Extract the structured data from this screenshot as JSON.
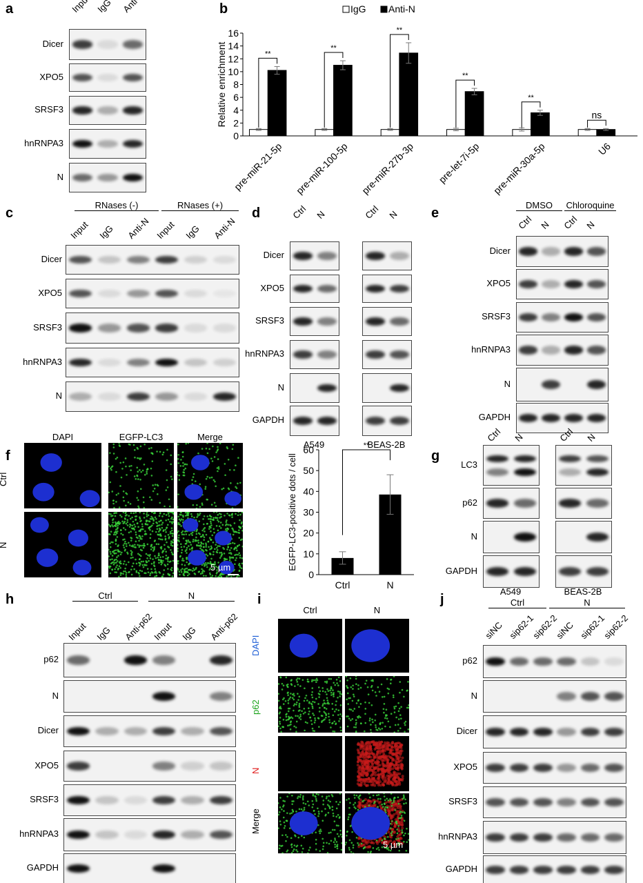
{
  "panel_labels": {
    "a": "a",
    "b": "b",
    "c": "c",
    "d": "d",
    "e": "e",
    "f": "f",
    "g": "g",
    "h": "h",
    "i": "i",
    "j": "j"
  },
  "blots": {
    "a": {
      "lanes": [
        "Input",
        "IgG",
        "Anti-N"
      ],
      "rows": [
        {
          "label": "Dicer",
          "bands": [
            0.8,
            0.1,
            0.6
          ]
        },
        {
          "label": "XPO5",
          "bands": [
            0.7,
            0.1,
            0.7
          ]
        },
        {
          "label": "SRSF3",
          "bands": [
            0.9,
            0.3,
            0.9
          ]
        },
        {
          "label": "hnRNPA3",
          "bands": [
            1,
            0.3,
            0.9
          ]
        },
        {
          "label": "N",
          "bands": [
            0.6,
            0.4,
            1
          ]
        }
      ]
    },
    "c": {
      "groups": [
        "RNases (-)",
        "RNases (+)"
      ],
      "lanes": [
        "Input",
        "IgG",
        "Anti-N",
        "Input",
        "IgG",
        "Anti-N"
      ],
      "rows": [
        {
          "label": "Dicer",
          "bands": [
            0.7,
            0.2,
            0.5,
            0.8,
            0.15,
            0.1
          ]
        },
        {
          "label": "XPO5",
          "bands": [
            0.7,
            0.1,
            0.4,
            0.7,
            0.1,
            0.05
          ]
        },
        {
          "label": "SRSF3",
          "bands": [
            1,
            0.4,
            0.7,
            0.8,
            0.1,
            0.1
          ]
        },
        {
          "label": "hnRNPA3",
          "bands": [
            0.9,
            0.1,
            0.5,
            1,
            0.2,
            0.15
          ]
        },
        {
          "label": "N",
          "bands": [
            0.3,
            0.1,
            0.8,
            0.4,
            0.1,
            0.9
          ]
        }
      ]
    },
    "d": {
      "lanes": [
        "Ctrl",
        "N"
      ],
      "captions": [
        "A549",
        "BEAS-2B"
      ],
      "row_labels": [
        "Dicer",
        "XPO5",
        "SRSF3",
        "hnRNPA3",
        "N",
        "GAPDH"
      ],
      "left": [
        [
          0.9,
          0.5
        ],
        [
          0.9,
          0.6
        ],
        [
          0.9,
          0.5
        ],
        [
          0.8,
          0.5
        ],
        [
          0,
          0.9
        ],
        [
          0.9,
          0.9
        ]
      ],
      "right": [
        [
          0.9,
          0.3
        ],
        [
          0.9,
          0.8
        ],
        [
          0.9,
          0.6
        ],
        [
          0.8,
          0.7
        ],
        [
          0,
          0.9
        ],
        [
          0.8,
          0.8
        ]
      ]
    },
    "e": {
      "groups": [
        "DMSO",
        "Chloroquine"
      ],
      "lanes": [
        "Ctrl",
        "N",
        "Ctrl",
        "N"
      ],
      "rows": [
        {
          "label": "Dicer",
          "bands": [
            0.9,
            0.3,
            0.9,
            0.7
          ]
        },
        {
          "label": "XPO5",
          "bands": [
            0.8,
            0.3,
            0.9,
            0.7
          ]
        },
        {
          "label": "SRSF3",
          "bands": [
            0.8,
            0.5,
            1,
            0.7
          ]
        },
        {
          "label": "hnRNPA3",
          "bands": [
            0.8,
            0.3,
            0.9,
            0.7
          ]
        },
        {
          "label": "N",
          "bands": [
            0,
            0.8,
            0,
            0.9
          ]
        },
        {
          "label": "GAPDH",
          "bands": [
            0.9,
            0.9,
            0.9,
            0.9
          ]
        }
      ]
    },
    "g": {
      "lanes": [
        "Ctrl",
        "N"
      ],
      "captions": [
        "A549",
        "BEAS-2B"
      ],
      "row_labels": [
        "LC3",
        "p62",
        "N",
        "GAPDH"
      ],
      "left": [
        [
          [
            0.9,
            0.5
          ],
          [
            0.9,
            1
          ]
        ],
        [
          0.9,
          0.6
        ],
        [
          0,
          1
        ],
        [
          0.9,
          0.9
        ]
      ],
      "right": [
        [
          [
            0.8,
            0.3
          ],
          [
            0.7,
            0.9
          ]
        ],
        [
          0.9,
          0.6
        ],
        [
          0,
          0.9
        ],
        [
          0.8,
          0.8
        ]
      ]
    },
    "h": {
      "groups": [
        "Ctrl",
        "N"
      ],
      "lanes": [
        "Input",
        "IgG",
        "Anti-p62",
        "Input",
        "IgG",
        "Anti-p62"
      ],
      "rows": [
        {
          "label": "p62",
          "bands": [
            0.6,
            0,
            1,
            0.5,
            0,
            0.9
          ]
        },
        {
          "label": "N",
          "bands": [
            0,
            0,
            0,
            1,
            0,
            0.5
          ]
        },
        {
          "label": "Dicer",
          "bands": [
            1,
            0.3,
            0.3,
            0.8,
            0.3,
            0.7
          ]
        },
        {
          "label": "XPO5",
          "bands": [
            0.8,
            0,
            0,
            0.5,
            0.15,
            0.2
          ]
        },
        {
          "label": "SRSF3",
          "bands": [
            1,
            0.2,
            0.1,
            0.8,
            0.3,
            0.8
          ]
        },
        {
          "label": "hnRNPA3",
          "bands": [
            1,
            0.2,
            0.1,
            0.9,
            0.3,
            0.7
          ]
        },
        {
          "label": "GAPDH",
          "bands": [
            1,
            0,
            0,
            1,
            0,
            0
          ]
        }
      ]
    },
    "j": {
      "groups": [
        "Ctrl",
        "N"
      ],
      "lanes": [
        "siNC",
        "sip62-1",
        "sip62-2",
        "siNC",
        "sip62-1",
        "sip62-2"
      ],
      "rows": [
        {
          "label": "p62",
          "bands": [
            1,
            0.6,
            0.6,
            0.6,
            0.2,
            0.1
          ]
        },
        {
          "label": "N",
          "bands": [
            0,
            0,
            0,
            0.5,
            0.7,
            0.7
          ]
        },
        {
          "label": "Dicer",
          "bands": [
            0.9,
            0.9,
            0.9,
            0.4,
            0.8,
            0.8
          ]
        },
        {
          "label": "XPO5",
          "bands": [
            0.8,
            0.8,
            0.8,
            0.4,
            0.6,
            0.7
          ]
        },
        {
          "label": "SRSF3",
          "bands": [
            0.7,
            0.7,
            0.7,
            0.5,
            0.7,
            0.7
          ]
        },
        {
          "label": "hnRNPA3",
          "bands": [
            0.8,
            0.8,
            0.8,
            0.6,
            0.6,
            0.6
          ]
        },
        {
          "label": "GAPDH",
          "bands": [
            0.8,
            0.8,
            0.8,
            0.8,
            0.8,
            0.8
          ]
        }
      ]
    }
  },
  "micro_f": {
    "columns": [
      "DAPI",
      "EGFP-LC3",
      "Merge"
    ],
    "rows": [
      "Ctrl",
      "N"
    ],
    "scale_bar": "5 µm"
  },
  "micro_i": {
    "columns": [
      "Ctrl",
      "N"
    ],
    "rows": [
      {
        "label": "DAPI",
        "color": "#1f5fd6"
      },
      {
        "label": "p62",
        "color": "#19a319"
      },
      {
        "label": "N",
        "color": "#e01818"
      },
      {
        "label": "Merge",
        "color": "#000000"
      }
    ],
    "scale_bar": "5 µm"
  },
  "chart_data": [
    {
      "type": "bar",
      "panel": "b",
      "title": "",
      "ylabel": "Relative enrichment",
      "xlabel": "",
      "ylim": [
        0,
        16
      ],
      "yticks": [
        0,
        2,
        4,
        6,
        8,
        10,
        12,
        14,
        16
      ],
      "legend_position": "top",
      "categories": [
        "pre-miR-21-5p",
        "pre-miR-100-5p",
        "pre-miR-27b-3p",
        "pre-let-7i-5p",
        "pre-miR-30a-5p",
        "U6"
      ],
      "series": [
        {
          "name": "IgG",
          "color": "#ffffff",
          "values": [
            1,
            1,
            1,
            1,
            1,
            1
          ],
          "errors": [
            0.15,
            0.15,
            0.15,
            0.2,
            0.25,
            0.15
          ]
        },
        {
          "name": "Anti-N",
          "color": "#000000",
          "values": [
            10.2,
            11.0,
            12.9,
            6.9,
            3.6,
            1.0
          ],
          "errors": [
            0.6,
            0.7,
            1.6,
            0.5,
            0.4,
            0.15
          ]
        }
      ],
      "significance": [
        "**",
        "**",
        "**",
        "**",
        "**",
        "ns"
      ]
    },
    {
      "type": "bar",
      "panel": "f",
      "title": "",
      "ylabel": "EGFP-LC3-positive dots / cell",
      "xlabel": "",
      "ylim": [
        0,
        60
      ],
      "yticks": [
        0,
        10,
        20,
        30,
        40,
        50,
        60
      ],
      "categories": [
        "Ctrl",
        "N"
      ],
      "values": [
        8,
        38.5
      ],
      "errors": [
        3,
        9.5
      ],
      "significance": "**"
    }
  ]
}
